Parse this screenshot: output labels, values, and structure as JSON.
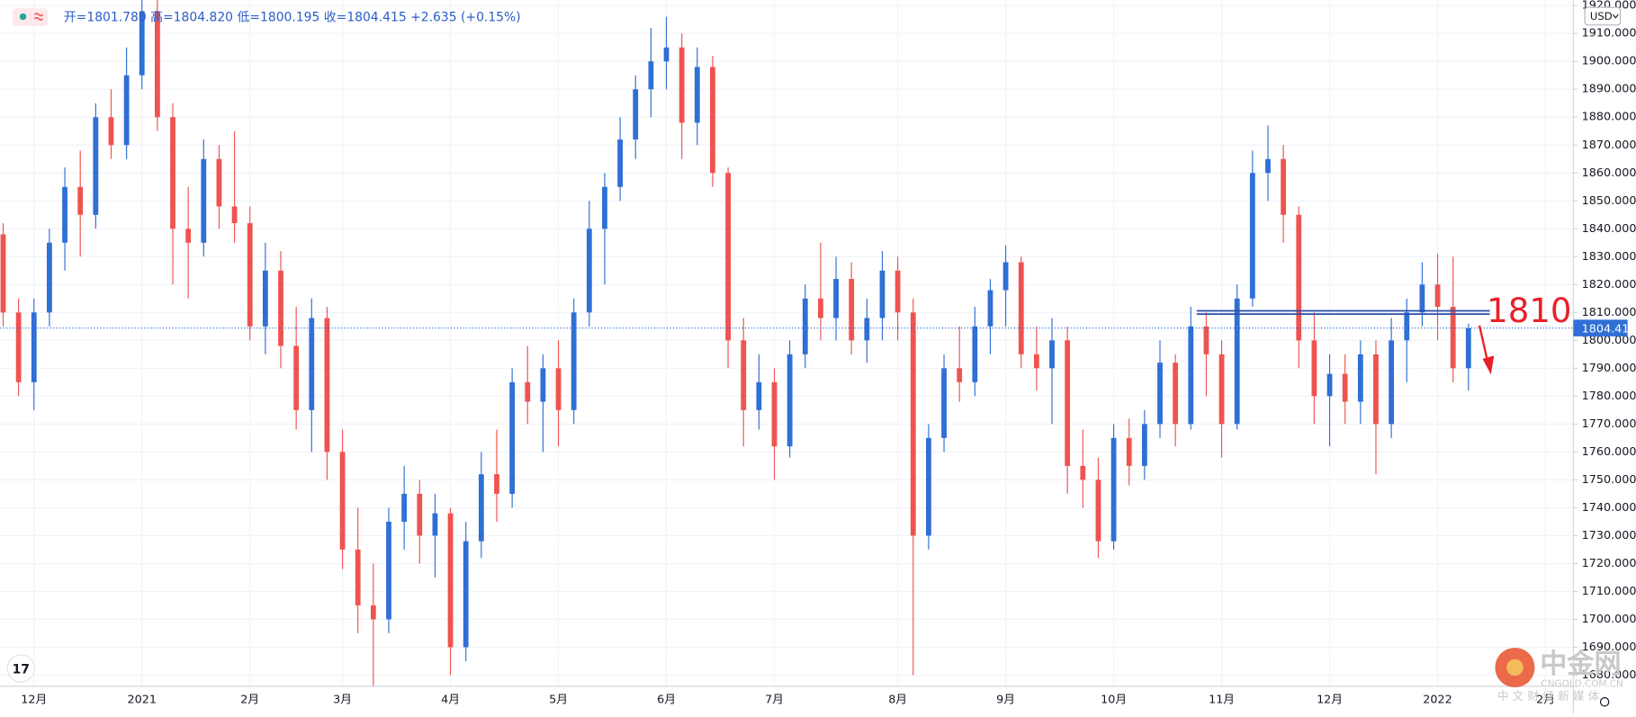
{
  "chart_data": {
    "type": "candlestick",
    "subtitle": "开=1801.780 高=1804.820 低=1800.195 收=1804.415 +2.635 (+0.15%)",
    "currency": "USD",
    "up_color": "#2f6fd6",
    "down_color": "#ef5350",
    "grid": true,
    "ylim": [
      1676,
      1922
    ],
    "yticks": [
      {
        "value": 1680,
        "label": "1680.000"
      },
      {
        "value": 1690,
        "label": "1690.000"
      },
      {
        "value": 1700,
        "label": "1700.000"
      },
      {
        "value": 1710,
        "label": "1710.000"
      },
      {
        "value": 1720,
        "label": "1720.000"
      },
      {
        "value": 1730,
        "label": "1730.000"
      },
      {
        "value": 1740,
        "label": "1740.000"
      },
      {
        "value": 1750,
        "label": "1750.000"
      },
      {
        "value": 1760,
        "label": "1760.000"
      },
      {
        "value": 1770,
        "label": "1770.000"
      },
      {
        "value": 1780,
        "label": "1780.000"
      },
      {
        "value": 1790,
        "label": "1790.000"
      },
      {
        "value": 1800,
        "label": "1800.000"
      },
      {
        "value": 1810,
        "label": "1810.000"
      },
      {
        "value": 1820,
        "label": "1820.000"
      },
      {
        "value": 1830,
        "label": "1830.000"
      },
      {
        "value": 1840,
        "label": "1840.000"
      },
      {
        "value": 1850,
        "label": "1850.000"
      },
      {
        "value": 1860,
        "label": "1860.000"
      },
      {
        "value": 1870,
        "label": "1870.000"
      },
      {
        "value": 1880,
        "label": "1880.000"
      },
      {
        "value": 1890,
        "label": "1890.000"
      },
      {
        "value": 1900,
        "label": "1900.000"
      },
      {
        "value": 1910,
        "label": "1910.000"
      },
      {
        "value": 1920,
        "label": "1920.000"
      }
    ],
    "categories": [
      null,
      null,
      "12月",
      null,
      null,
      null,
      null,
      null,
      null,
      "2021",
      null,
      null,
      null,
      null,
      null,
      null,
      "2月",
      null,
      null,
      null,
      null,
      null,
      "3月",
      null,
      null,
      null,
      null,
      null,
      null,
      "4月",
      null,
      null,
      null,
      null,
      null,
      null,
      "5月",
      null,
      null,
      null,
      null,
      null,
      null,
      "6月",
      null,
      null,
      null,
      null,
      null,
      null,
      "7月",
      null,
      null,
      null,
      null,
      null,
      null,
      null,
      "8月",
      null,
      null,
      null,
      null,
      null,
      null,
      "9月",
      null,
      null,
      null,
      null,
      null,
      null,
      "10月",
      null,
      null,
      null,
      null,
      null,
      null,
      "11月",
      null,
      null,
      null,
      null,
      null,
      null,
      "12月",
      null,
      null,
      null,
      null,
      null,
      null,
      "2022",
      null,
      null,
      null,
      null,
      null,
      null,
      "2月",
      null
    ],
    "open": [
      1838,
      1810,
      1785,
      1810,
      1835,
      1855,
      1845,
      1880,
      1870,
      1895,
      1918,
      1880,
      1840,
      1835,
      1865,
      1848,
      1842,
      1805,
      1825,
      1798,
      1775,
      1808,
      1760,
      1725,
      1705,
      1700,
      1735,
      1745,
      1730,
      1738,
      1690,
      1728,
      1752,
      1745,
      1785,
      1778,
      1790,
      1775,
      1810,
      1840,
      1855,
      1872,
      1890,
      1900,
      1905,
      1878,
      1898,
      1860,
      1800,
      1775,
      1785,
      1762,
      1795,
      1815,
      1808,
      1822,
      1800,
      1808,
      1825,
      1810,
      1730,
      1765,
      1790,
      1785,
      1805,
      1818,
      1828,
      1795,
      1790,
      1800,
      1755,
      1750,
      1728,
      1765,
      1755,
      1770,
      1792,
      1770,
      1805,
      1795,
      1770,
      1815,
      1860,
      1865,
      1845,
      1800,
      1780,
      1788,
      1778,
      1795,
      1770,
      1800,
      1810,
      1820,
      1812,
      1790,
      null,
      null,
      null,
      null,
      null,
      null
    ],
    "high": [
      1842,
      1815,
      1815,
      1840,
      1862,
      1868,
      1885,
      1890,
      1905,
      1928,
      1925,
      1885,
      1855,
      1872,
      1870,
      1875,
      1848,
      1835,
      1832,
      1812,
      1815,
      1812,
      1768,
      1740,
      1720,
      1740,
      1755,
      1750,
      1745,
      1740,
      1735,
      1760,
      1768,
      1790,
      1798,
      1795,
      1800,
      1815,
      1850,
      1860,
      1880,
      1895,
      1912,
      1916,
      1910,
      1905,
      1902,
      1862,
      1808,
      1795,
      1790,
      1800,
      1820,
      1835,
      1830,
      1828,
      1815,
      1832,
      1830,
      1815,
      1770,
      1795,
      1805,
      1812,
      1822,
      1834,
      1830,
      1805,
      1808,
      1805,
      1768,
      1758,
      1770,
      1772,
      1775,
      1800,
      1795,
      1812,
      1810,
      1800,
      1820,
      1868,
      1877,
      1870,
      1848,
      1810,
      1795,
      1795,
      1800,
      1800,
      1808,
      1815,
      1828,
      1831,
      1830,
      1806,
      null,
      null,
      null,
      null,
      null,
      null
    ],
    "low": [
      1805,
      1780,
      1775,
      1805,
      1825,
      1830,
      1840,
      1865,
      1865,
      1890,
      1875,
      1820,
      1815,
      1830,
      1840,
      1835,
      1800,
      1795,
      1790,
      1768,
      1760,
      1750,
      1718,
      1695,
      1676,
      1695,
      1725,
      1720,
      1715,
      1680,
      1685,
      1722,
      1735,
      1740,
      1770,
      1760,
      1762,
      1770,
      1805,
      1820,
      1850,
      1865,
      1880,
      1890,
      1865,
      1870,
      1855,
      1790,
      1762,
      1768,
      1750,
      1758,
      1790,
      1800,
      1800,
      1795,
      1792,
      1800,
      1800,
      1680,
      1725,
      1760,
      1778,
      1780,
      1795,
      1805,
      1790,
      1782,
      1770,
      1745,
      1740,
      1722,
      1725,
      1748,
      1750,
      1765,
      1762,
      1768,
      1780,
      1758,
      1768,
      1812,
      1850,
      1835,
      1790,
      1770,
      1762,
      1770,
      1770,
      1752,
      1765,
      1785,
      1805,
      1800,
      1785,
      1782,
      null,
      null,
      null,
      null,
      null,
      null
    ],
    "close": [
      1810,
      1785,
      1810,
      1835,
      1855,
      1845,
      1880,
      1870,
      1895,
      1918,
      1880,
      1840,
      1835,
      1865,
      1848,
      1842,
      1805,
      1825,
      1798,
      1775,
      1808,
      1760,
      1725,
      1705,
      1700,
      1735,
      1745,
      1730,
      1738,
      1690,
      1728,
      1752,
      1745,
      1785,
      1778,
      1790,
      1775,
      1810,
      1840,
      1855,
      1872,
      1890,
      1900,
      1905,
      1878,
      1898,
      1860,
      1800,
      1775,
      1785,
      1762,
      1795,
      1815,
      1808,
      1822,
      1800,
      1808,
      1825,
      1810,
      1730,
      1765,
      1790,
      1785,
      1805,
      1818,
      1828,
      1795,
      1790,
      1800,
      1755,
      1750,
      1728,
      1765,
      1755,
      1770,
      1792,
      1770,
      1805,
      1795,
      1770,
      1815,
      1860,
      1865,
      1845,
      1800,
      1780,
      1788,
      1778,
      1795,
      1770,
      1800,
      1810,
      1820,
      1812,
      1790,
      1804.415,
      null,
      null,
      null,
      null,
      null,
      null
    ],
    "last_price": {
      "value": 1804.415,
      "label": "1804.415"
    },
    "annotation": {
      "text": "1810",
      "value": 1810,
      "color": "#e8202a"
    },
    "level_lines": [
      1810.6,
      1809.4
    ]
  },
  "watermark": {
    "name": "中金网",
    "site": "CNGOLD.COM.CN",
    "slogan": "中 文 财 经 新 媒 体"
  }
}
